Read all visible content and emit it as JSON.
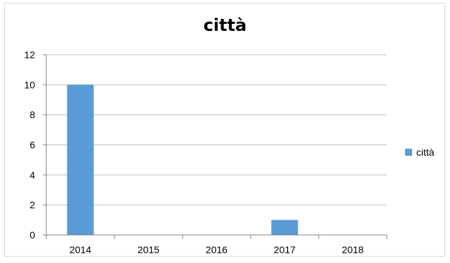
{
  "chart_data": {
    "type": "bar",
    "title": "città",
    "categories": [
      "2014",
      "2015",
      "2016",
      "2017",
      "2018"
    ],
    "series": [
      {
        "name": "città",
        "values": [
          10,
          0,
          0,
          1,
          0
        ],
        "color": "#5b9bd5"
      }
    ],
    "ylim": [
      0,
      12
    ],
    "yticks": [
      0,
      2,
      4,
      6,
      8,
      10,
      12
    ],
    "grid": true,
    "legend_position": "right"
  }
}
